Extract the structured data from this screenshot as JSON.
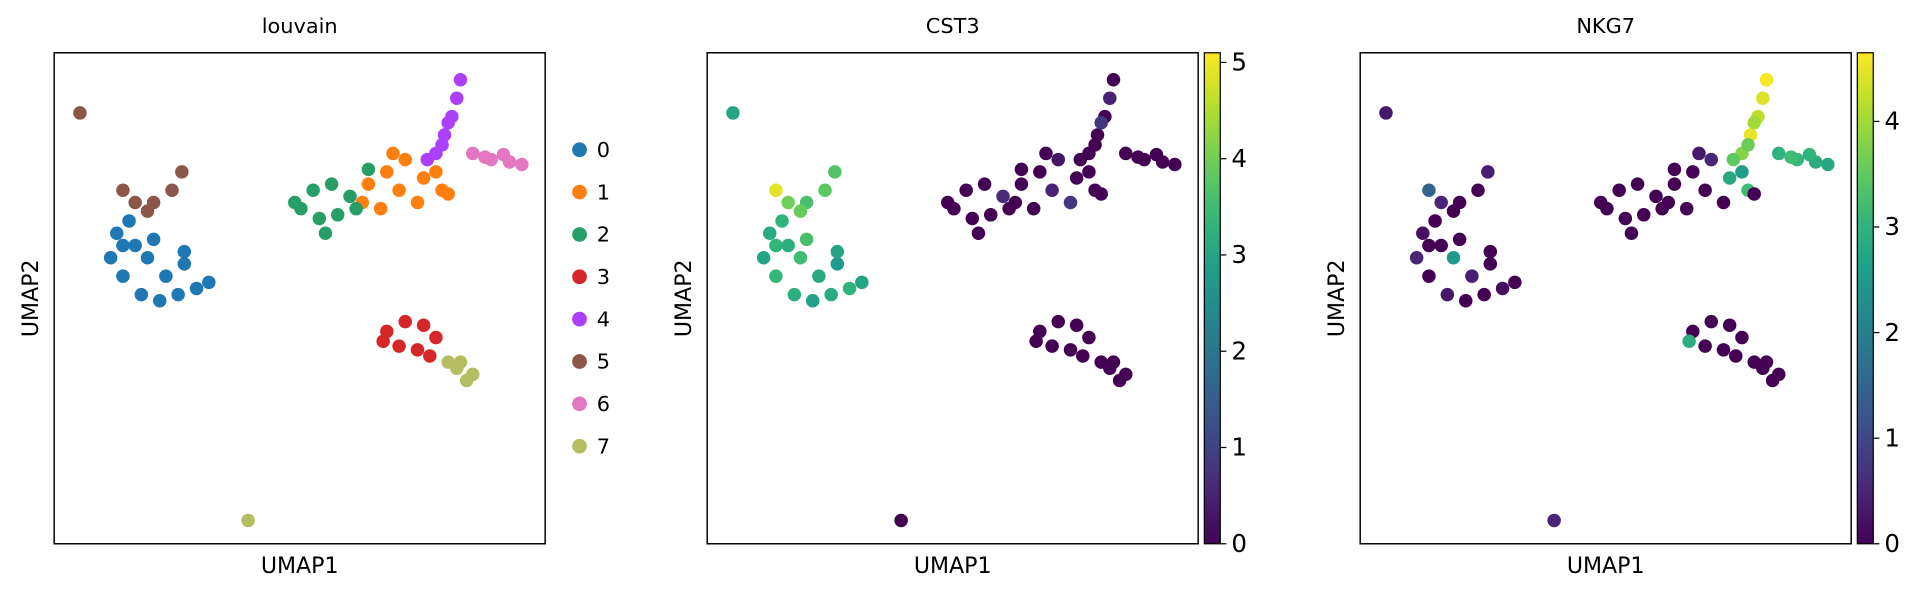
{
  "chart_data": [
    {
      "type": "scatter",
      "title": "louvain",
      "x_label": "UMAP1",
      "y_label": "UMAP2",
      "xlim": [
        0,
        400
      ],
      "ylim": [
        0,
        400
      ],
      "series": [
        {
          "name": "0",
          "color": "#1f77b4",
          "x": [
            51,
            61,
            46,
            56,
            71,
            86,
            101,
            116,
            126,
            76,
            66,
            91,
            106,
            81,
            56,
            106
          ],
          "y": [
            253,
            263,
            233,
            218,
            203,
            198,
            203,
            208,
            213,
            233,
            243,
            218,
            228,
            248,
            243,
            238
          ]
        },
        {
          "name": "1",
          "color": "#ff7f0e",
          "x": [
            256,
            271,
            286,
            276,
            301,
            316,
            296,
            266,
            251,
            281,
            311,
            321
          ],
          "y": [
            293,
            303,
            313,
            318,
            298,
            288,
            278,
            273,
            278,
            288,
            303,
            285
          ]
        },
        {
          "name": "2",
          "color": "#279e68",
          "x": [
            196,
            211,
            226,
            241,
            231,
            216,
            201,
            221,
            256,
            246
          ],
          "y": [
            278,
            288,
            293,
            283,
            268,
            265,
            273,
            253,
            305,
            273
          ]
        },
        {
          "name": "3",
          "color": "#d62728",
          "x": [
            271,
            286,
            301,
            311,
            296,
            281,
            268,
            306
          ],
          "y": [
            173,
            181,
            178,
            168,
            158,
            161,
            165,
            153
          ]
        },
        {
          "name": "4",
          "color": "#aa40fc",
          "x": [
            331,
            328,
            324,
            318,
            311,
            304,
            321,
            316
          ],
          "y": [
            378,
            363,
            348,
            333,
            318,
            313,
            343,
            325
          ]
        },
        {
          "name": "5",
          "color": "#8c564b",
          "x": [
            21,
            56,
            66,
            81,
            96,
            104,
            76
          ],
          "y": [
            351,
            288,
            278,
            278,
            288,
            303,
            271
          ]
        },
        {
          "name": "6",
          "color": "#e377c2",
          "x": [
            341,
            356,
            371,
            381,
            351,
            366
          ],
          "y": [
            318,
            313,
            311,
            309,
            315,
            317
          ]
        },
        {
          "name": "7",
          "color": "#b5bd61",
          "x": [
            328,
            336,
            341,
            331,
            321,
            158
          ],
          "y": [
            143,
            133,
            138,
            148,
            148,
            19
          ]
        }
      ]
    },
    {
      "type": "scatter-colored",
      "title": "CST3",
      "x_label": "UMAP1",
      "y_label": "UMAP2",
      "xlim": [
        0,
        400
      ],
      "ylim": [
        0,
        400
      ],
      "colormap": "viridis",
      "clim": [
        0,
        5.1
      ],
      "cticks": [
        0,
        1,
        2,
        3,
        4,
        5
      ],
      "series": [
        {
          "x": [
            51,
            61,
            46,
            56,
            71,
            86,
            101,
            116,
            126,
            76,
            66,
            91,
            106,
            81,
            56,
            106
          ],
          "y": [
            253,
            263,
            233,
            218,
            203,
            198,
            203,
            208,
            213,
            233,
            243,
            218,
            228,
            248,
            243,
            238
          ],
          "values": [
            3.1,
            3.3,
            3.0,
            3.4,
            3.2,
            2.9,
            3.1,
            3.3,
            3.0,
            3.5,
            3.2,
            3.1,
            2.8,
            3.6,
            3.3,
            3.0
          ]
        },
        {
          "x": [
            256,
            271,
            286,
            276,
            301,
            316,
            296,
            266,
            251,
            281,
            311,
            321
          ],
          "y": [
            293,
            303,
            313,
            318,
            298,
            288,
            278,
            273,
            278,
            288,
            303,
            285
          ],
          "values": [
            0,
            0,
            0.3,
            0,
            0,
            0,
            0.8,
            0,
            0,
            0.5,
            0,
            0
          ]
        },
        {
          "x": [
            196,
            211,
            226,
            241,
            231,
            216,
            201,
            221,
            256,
            246
          ],
          "y": [
            278,
            288,
            293,
            283,
            268,
            265,
            273,
            253,
            305,
            273
          ],
          "values": [
            0,
            0,
            0,
            0.6,
            0,
            0,
            0,
            0,
            0,
            0
          ]
        },
        {
          "x": [
            271,
            286,
            301,
            311,
            296,
            281,
            268,
            306
          ],
          "y": [
            173,
            181,
            178,
            168,
            158,
            161,
            165,
            153
          ],
          "values": [
            0,
            0,
            0,
            0,
            0,
            0,
            0,
            0
          ]
        },
        {
          "x": [
            331,
            328,
            324,
            318,
            311,
            304,
            321,
            316
          ],
          "y": [
            378,
            363,
            348,
            333,
            318,
            313,
            343,
            325
          ],
          "values": [
            0,
            0.5,
            0,
            0,
            0,
            0,
            0.8,
            0
          ]
        },
        {
          "x": [
            21,
            56,
            66,
            81,
            96,
            104,
            76
          ],
          "y": [
            351,
            288,
            278,
            278,
            288,
            303,
            271
          ],
          "values": [
            3.0,
            4.9,
            4.0,
            3.6,
            3.8,
            3.7,
            3.9
          ]
        },
        {
          "x": [
            341,
            356,
            371,
            381,
            351,
            366
          ],
          "y": [
            318,
            313,
            311,
            309,
            315,
            317
          ],
          "values": [
            0,
            0,
            0,
            0,
            0,
            0
          ]
        },
        {
          "x": [
            328,
            336,
            341,
            331,
            321,
            158
          ],
          "y": [
            143,
            133,
            138,
            148,
            148,
            19
          ],
          "values": [
            0,
            0,
            0,
            0,
            0,
            0
          ]
        }
      ]
    },
    {
      "type": "scatter-colored",
      "title": "NKG7",
      "x_label": "UMAP1",
      "y_label": "UMAP2",
      "xlim": [
        0,
        400
      ],
      "ylim": [
        0,
        400
      ],
      "colormap": "viridis",
      "clim": [
        0,
        4.65
      ],
      "cticks": [
        0,
        1,
        2,
        3,
        4
      ],
      "series": [
        {
          "x": [
            51,
            61,
            46,
            56,
            71,
            86,
            101,
            116,
            126,
            76,
            66,
            91,
            106,
            81,
            56,
            106
          ],
          "y": [
            253,
            263,
            233,
            218,
            203,
            198,
            203,
            208,
            213,
            233,
            243,
            218,
            228,
            248,
            243,
            238
          ],
          "values": [
            0.2,
            0,
            0.5,
            0,
            0.3,
            0,
            0,
            0.2,
            0,
            2.5,
            0,
            0.4,
            0,
            0,
            0,
            0
          ]
        },
        {
          "x": [
            256,
            271,
            286,
            276,
            301,
            316,
            296,
            266,
            251,
            281,
            311,
            321
          ],
          "y": [
            293,
            303,
            313,
            318,
            298,
            288,
            278,
            273,
            278,
            288,
            303,
            285
          ],
          "values": [
            0,
            0,
            0.5,
            0.3,
            2.8,
            3.2,
            0,
            0,
            0,
            0,
            2.6,
            0
          ]
        },
        {
          "x": [
            196,
            211,
            226,
            241,
            231,
            216,
            201,
            221,
            256,
            246
          ],
          "y": [
            278,
            288,
            293,
            283,
            268,
            265,
            273,
            253,
            305,
            273
          ],
          "values": [
            0,
            0,
            0,
            0,
            0,
            0,
            0,
            0,
            0,
            0
          ]
        },
        {
          "x": [
            271,
            286,
            301,
            311,
            296,
            281,
            268,
            306
          ],
          "y": [
            173,
            181,
            178,
            168,
            158,
            161,
            165,
            153
          ],
          "values": [
            0,
            0,
            0,
            0,
            0,
            0,
            2.9,
            0
          ]
        },
        {
          "x": [
            331,
            328,
            324,
            318,
            311,
            304,
            321,
            316
          ],
          "y": [
            378,
            363,
            348,
            333,
            318,
            313,
            343,
            325
          ],
          "values": [
            4.6,
            4.4,
            4.2,
            4.5,
            3.8,
            3.5,
            4.0,
            3.6
          ]
        },
        {
          "x": [
            21,
            56,
            66,
            81,
            96,
            104,
            76
          ],
          "y": [
            351,
            288,
            278,
            278,
            288,
            303,
            271
          ],
          "values": [
            0.3,
            1.5,
            0.5,
            0,
            0,
            0.4,
            0
          ]
        },
        {
          "x": [
            341,
            356,
            371,
            381,
            351,
            366
          ],
          "y": [
            318,
            313,
            311,
            309,
            315,
            317
          ],
          "values": [
            3.0,
            3.1,
            2.9,
            2.8,
            3.2,
            3.0
          ]
        },
        {
          "x": [
            328,
            336,
            341,
            331,
            321,
            158
          ],
          "y": [
            143,
            133,
            138,
            148,
            148,
            19
          ],
          "values": [
            0,
            0,
            0,
            0,
            0,
            0.5
          ]
        }
      ]
    }
  ]
}
